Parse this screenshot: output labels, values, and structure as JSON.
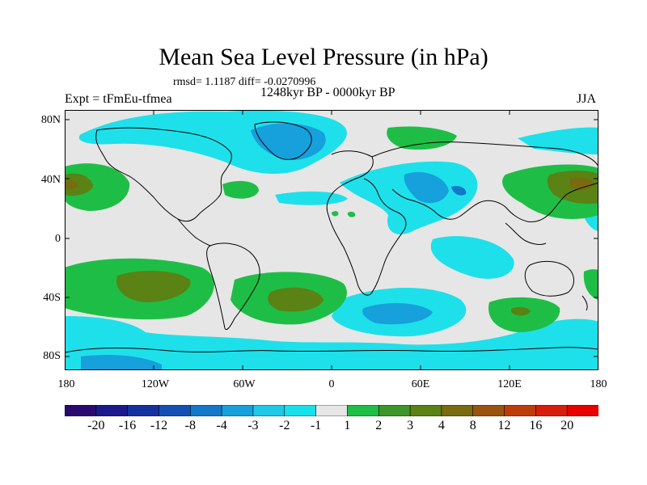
{
  "title": "Mean Sea Level Pressure (in hPa)",
  "stats": "rmsd= 1.1187 diff= -0.0270996",
  "period": "1248kyr BP - 0000kyr BP",
  "expt": "Expt = tFmEu-tfmea",
  "season": "JJA",
  "lat_labels": [
    "80N",
    "40N",
    "0",
    "40S",
    "80S"
  ],
  "lon_labels": [
    "180",
    "120W",
    "60W",
    "0",
    "60E",
    "120E",
    "180"
  ],
  "colorbar": {
    "labels": [
      "-20",
      "-16",
      "-12",
      "-8",
      "-4",
      "-3",
      "-2",
      "-1",
      "1",
      "2",
      "3",
      "4",
      "8",
      "12",
      "16",
      "20"
    ],
    "colors": [
      "#2a0a6e",
      "#1a1a8c",
      "#14329e",
      "#1450b4",
      "#1478c8",
      "#16a0dc",
      "#1ec8e6",
      "#18e0ea",
      "#e6e6e6",
      "#1ebe46",
      "#3c9628",
      "#5a8214",
      "#7a6a10",
      "#9a5410",
      "#be3c0a",
      "#d81e0a",
      "#e80000"
    ]
  }
}
